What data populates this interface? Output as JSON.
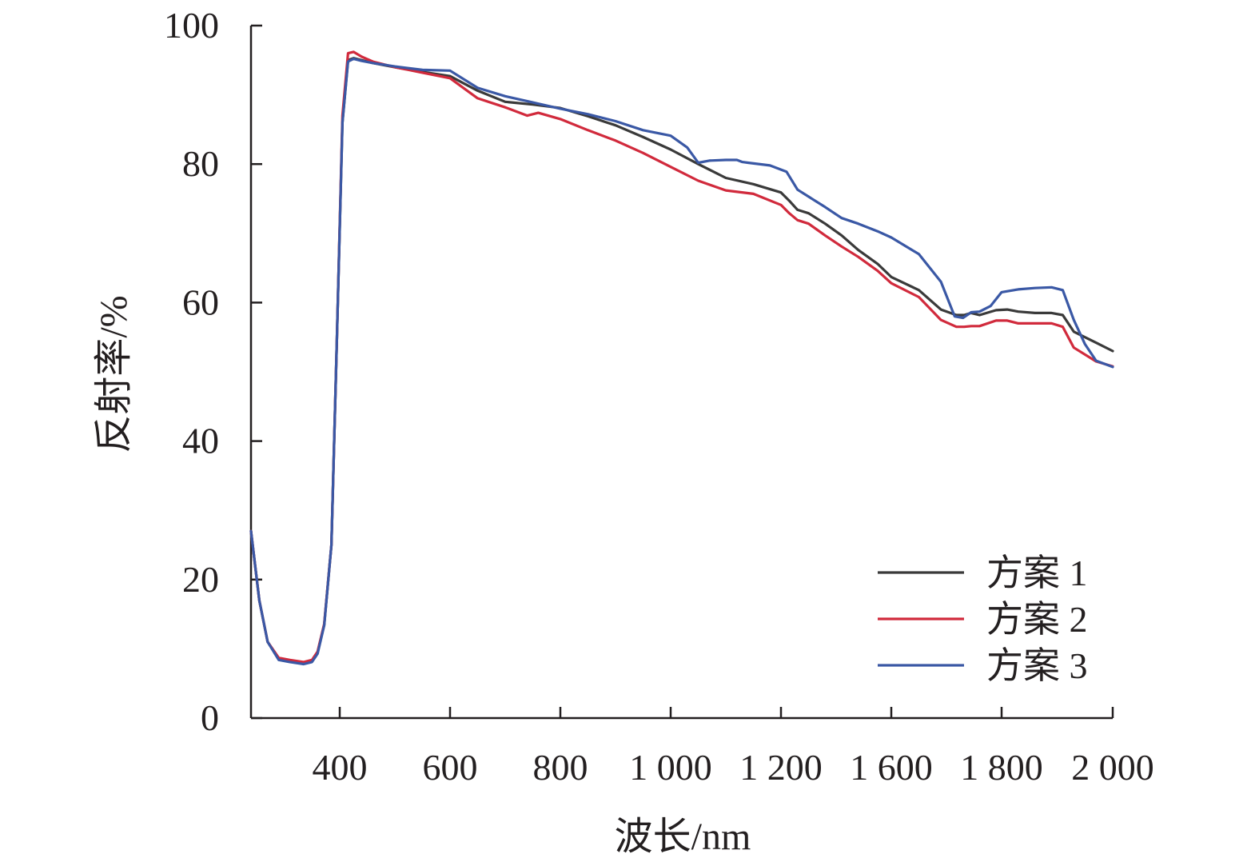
{
  "chart_data": {
    "type": "line",
    "xlabel": "波长/nm",
    "ylabel": "反射率/%",
    "ylim": [
      0,
      100
    ],
    "yticks": [
      0,
      20,
      40,
      60,
      80,
      100
    ],
    "ytick_labels": [
      "0",
      "20",
      "40",
      "60",
      "80",
      "100"
    ],
    "xticks": [
      400,
      600,
      800,
      1000,
      1200,
      1600,
      1800,
      2000
    ],
    "xtick_labels": [
      "400",
      "600",
      "800",
      "1 000",
      "1 200",
      "1 600",
      "1 800",
      "2 000"
    ],
    "legend_position": "bottom-right",
    "series": [
      {
        "name": "方案 1",
        "color": "#3a3a3a",
        "x": [
          240,
          255,
          270,
          290,
          310,
          335,
          350,
          360,
          372,
          385,
          395,
          405,
          415,
          425,
          440,
          460,
          500,
          550,
          600,
          650,
          700,
          750,
          800,
          850,
          900,
          950,
          1000,
          1050,
          1100,
          1150,
          1200,
          1230,
          1260,
          1300,
          1360,
          1420,
          1480,
          1550,
          1600,
          1650,
          1690,
          1718,
          1732,
          1745,
          1760,
          1790,
          1810,
          1830,
          1860,
          1890,
          1910,
          1930,
          1970,
          2000
        ],
        "values": [
          27,
          17,
          11,
          8.6,
          8.3,
          8.0,
          8.3,
          9.5,
          13.5,
          25,
          55,
          86,
          95,
          95.3,
          95.0,
          94.6,
          94.0,
          93.3,
          92.7,
          90.6,
          89.0,
          88.6,
          88.1,
          86.9,
          85.6,
          83.9,
          82.1,
          80.0,
          78.0,
          77.1,
          75.9,
          74.7,
          73.4,
          72.9,
          71.4,
          69.7,
          67.6,
          65.6,
          63.7,
          61.8,
          59.0,
          58.2,
          58.2,
          58.5,
          58.2,
          58.9,
          59.0,
          58.7,
          58.5,
          58.5,
          58.2,
          55.8,
          54.2,
          53.0
        ]
      },
      {
        "name": "方案 2",
        "color": "#d12a3c",
        "x": [
          240,
          255,
          270,
          290,
          310,
          335,
          350,
          360,
          372,
          385,
          395,
          405,
          415,
          425,
          440,
          460,
          500,
          550,
          600,
          650,
          700,
          740,
          760,
          800,
          850,
          900,
          950,
          1000,
          1050,
          1100,
          1150,
          1200,
          1230,
          1260,
          1300,
          1360,
          1420,
          1480,
          1550,
          1600,
          1650,
          1690,
          1718,
          1732,
          1745,
          1760,
          1790,
          1810,
          1830,
          1860,
          1890,
          1910,
          1930,
          1970,
          2000
        ],
        "values": [
          27,
          17,
          11,
          8.7,
          8.4,
          8.1,
          8.4,
          9.6,
          13.6,
          25,
          55,
          87,
          96,
          96.2,
          95.5,
          94.8,
          94.0,
          93.2,
          92.4,
          89.5,
          88.2,
          87.0,
          87.4,
          86.5,
          84.9,
          83.4,
          81.6,
          79.6,
          77.6,
          76.2,
          75.7,
          74.1,
          72.9,
          71.9,
          71.4,
          69.7,
          68.1,
          66.6,
          64.6,
          62.8,
          60.8,
          57.5,
          56.5,
          56.5,
          56.6,
          56.6,
          57.4,
          57.4,
          57.0,
          57.0,
          57.0,
          56.5,
          53.5,
          51.5,
          50.8
        ]
      },
      {
        "name": "方案 3",
        "color": "#3a58a5",
        "x": [
          240,
          255,
          270,
          290,
          310,
          335,
          350,
          360,
          372,
          385,
          395,
          405,
          415,
          425,
          440,
          460,
          500,
          550,
          600,
          650,
          700,
          750,
          800,
          850,
          900,
          950,
          1000,
          1030,
          1050,
          1070,
          1100,
          1120,
          1130,
          1140,
          1180,
          1220,
          1260,
          1300,
          1360,
          1420,
          1480,
          1550,
          1600,
          1650,
          1690,
          1715,
          1730,
          1745,
          1760,
          1780,
          1800,
          1830,
          1860,
          1890,
          1910,
          1930,
          1950,
          1970,
          2000
        ],
        "values": [
          27,
          17,
          11,
          8.4,
          8.1,
          7.8,
          8.1,
          9.3,
          13.4,
          25,
          55,
          86,
          94.8,
          95.2,
          94.9,
          94.6,
          94.1,
          93.6,
          93.5,
          91.0,
          89.8,
          88.9,
          88.0,
          87.2,
          86.2,
          84.9,
          84.1,
          82.4,
          80.2,
          80.5,
          80.6,
          80.6,
          80.3,
          80.2,
          79.8,
          78.9,
          76.3,
          75.3,
          73.8,
          72.2,
          71.4,
          70.3,
          69.4,
          67.0,
          63.0,
          58.0,
          57.8,
          58.6,
          58.7,
          59.5,
          61.5,
          61.9,
          62.1,
          62.2,
          61.8,
          57.5,
          54.0,
          51.6,
          50.7
        ]
      }
    ]
  }
}
